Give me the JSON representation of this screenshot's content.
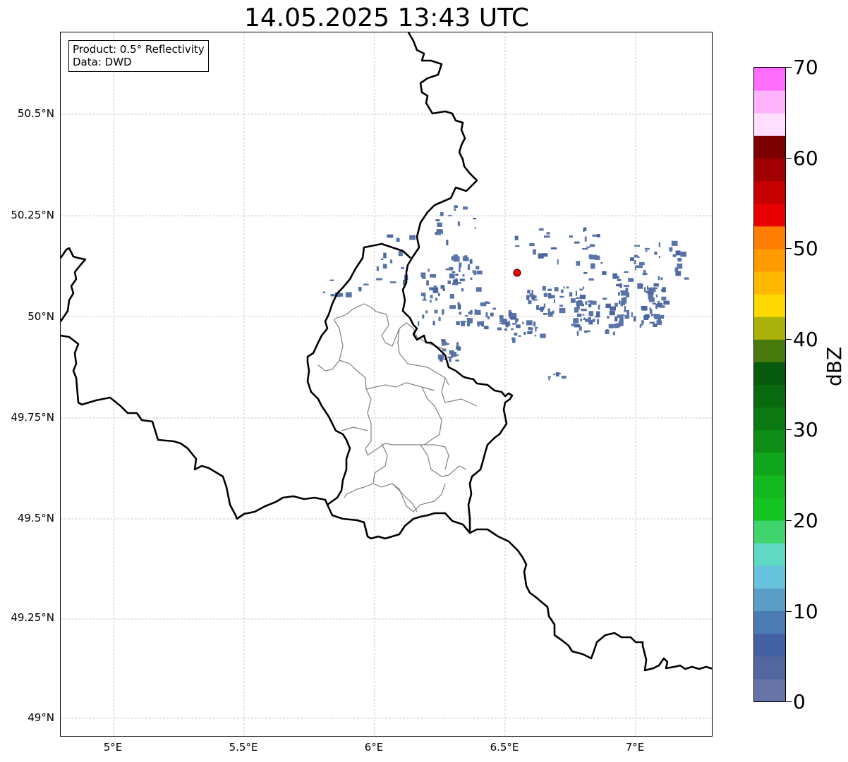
{
  "title": "14.05.2025 13:43 UTC",
  "infobox": {
    "product_line": "Product: 0.5° Reflectivity",
    "data_line": "Data: DWD"
  },
  "axes": {
    "lat_labels": [
      "50.5°N",
      "50.25°N",
      "50°N",
      "49.75°N",
      "49.5°N",
      "49.25°N",
      "49°N"
    ],
    "lon_labels": [
      "5°E",
      "5.5°E",
      "6°E",
      "6.5°E",
      "7°E"
    ]
  },
  "colorbar": {
    "unit": "dBZ",
    "tick_labels": [
      "0",
      "10",
      "20",
      "30",
      "40",
      "50",
      "60",
      "70"
    ],
    "range": [
      0,
      70
    ],
    "step": 2.5,
    "colors": [
      "#6573a6",
      "#5266a0",
      "#4360a3",
      "#4b7bb3",
      "#5a9ec8",
      "#66c2dd",
      "#5fd8c4",
      "#3fd46c",
      "#13c422",
      "#12b81f",
      "#11a51c",
      "#0e8e17",
      "#0b7a12",
      "#0a6a0f",
      "#085a0c",
      "#487a0e",
      "#aab20a",
      "#ffd800",
      "#ffb800",
      "#ff9a00",
      "#ff7d00",
      "#e80000",
      "#c60000",
      "#a10000",
      "#7c0000",
      "#ffdeff",
      "#ffb3ff",
      "#ff6eff",
      "#ec3cec"
    ]
  },
  "map_style": {
    "country_border": "#000000",
    "district_border": "#808080",
    "grid": "#bfbfbf",
    "echo_color": "#5a73a8",
    "echo_color_dark": "#4d66a0",
    "radar_site": "#ff0000"
  }
}
